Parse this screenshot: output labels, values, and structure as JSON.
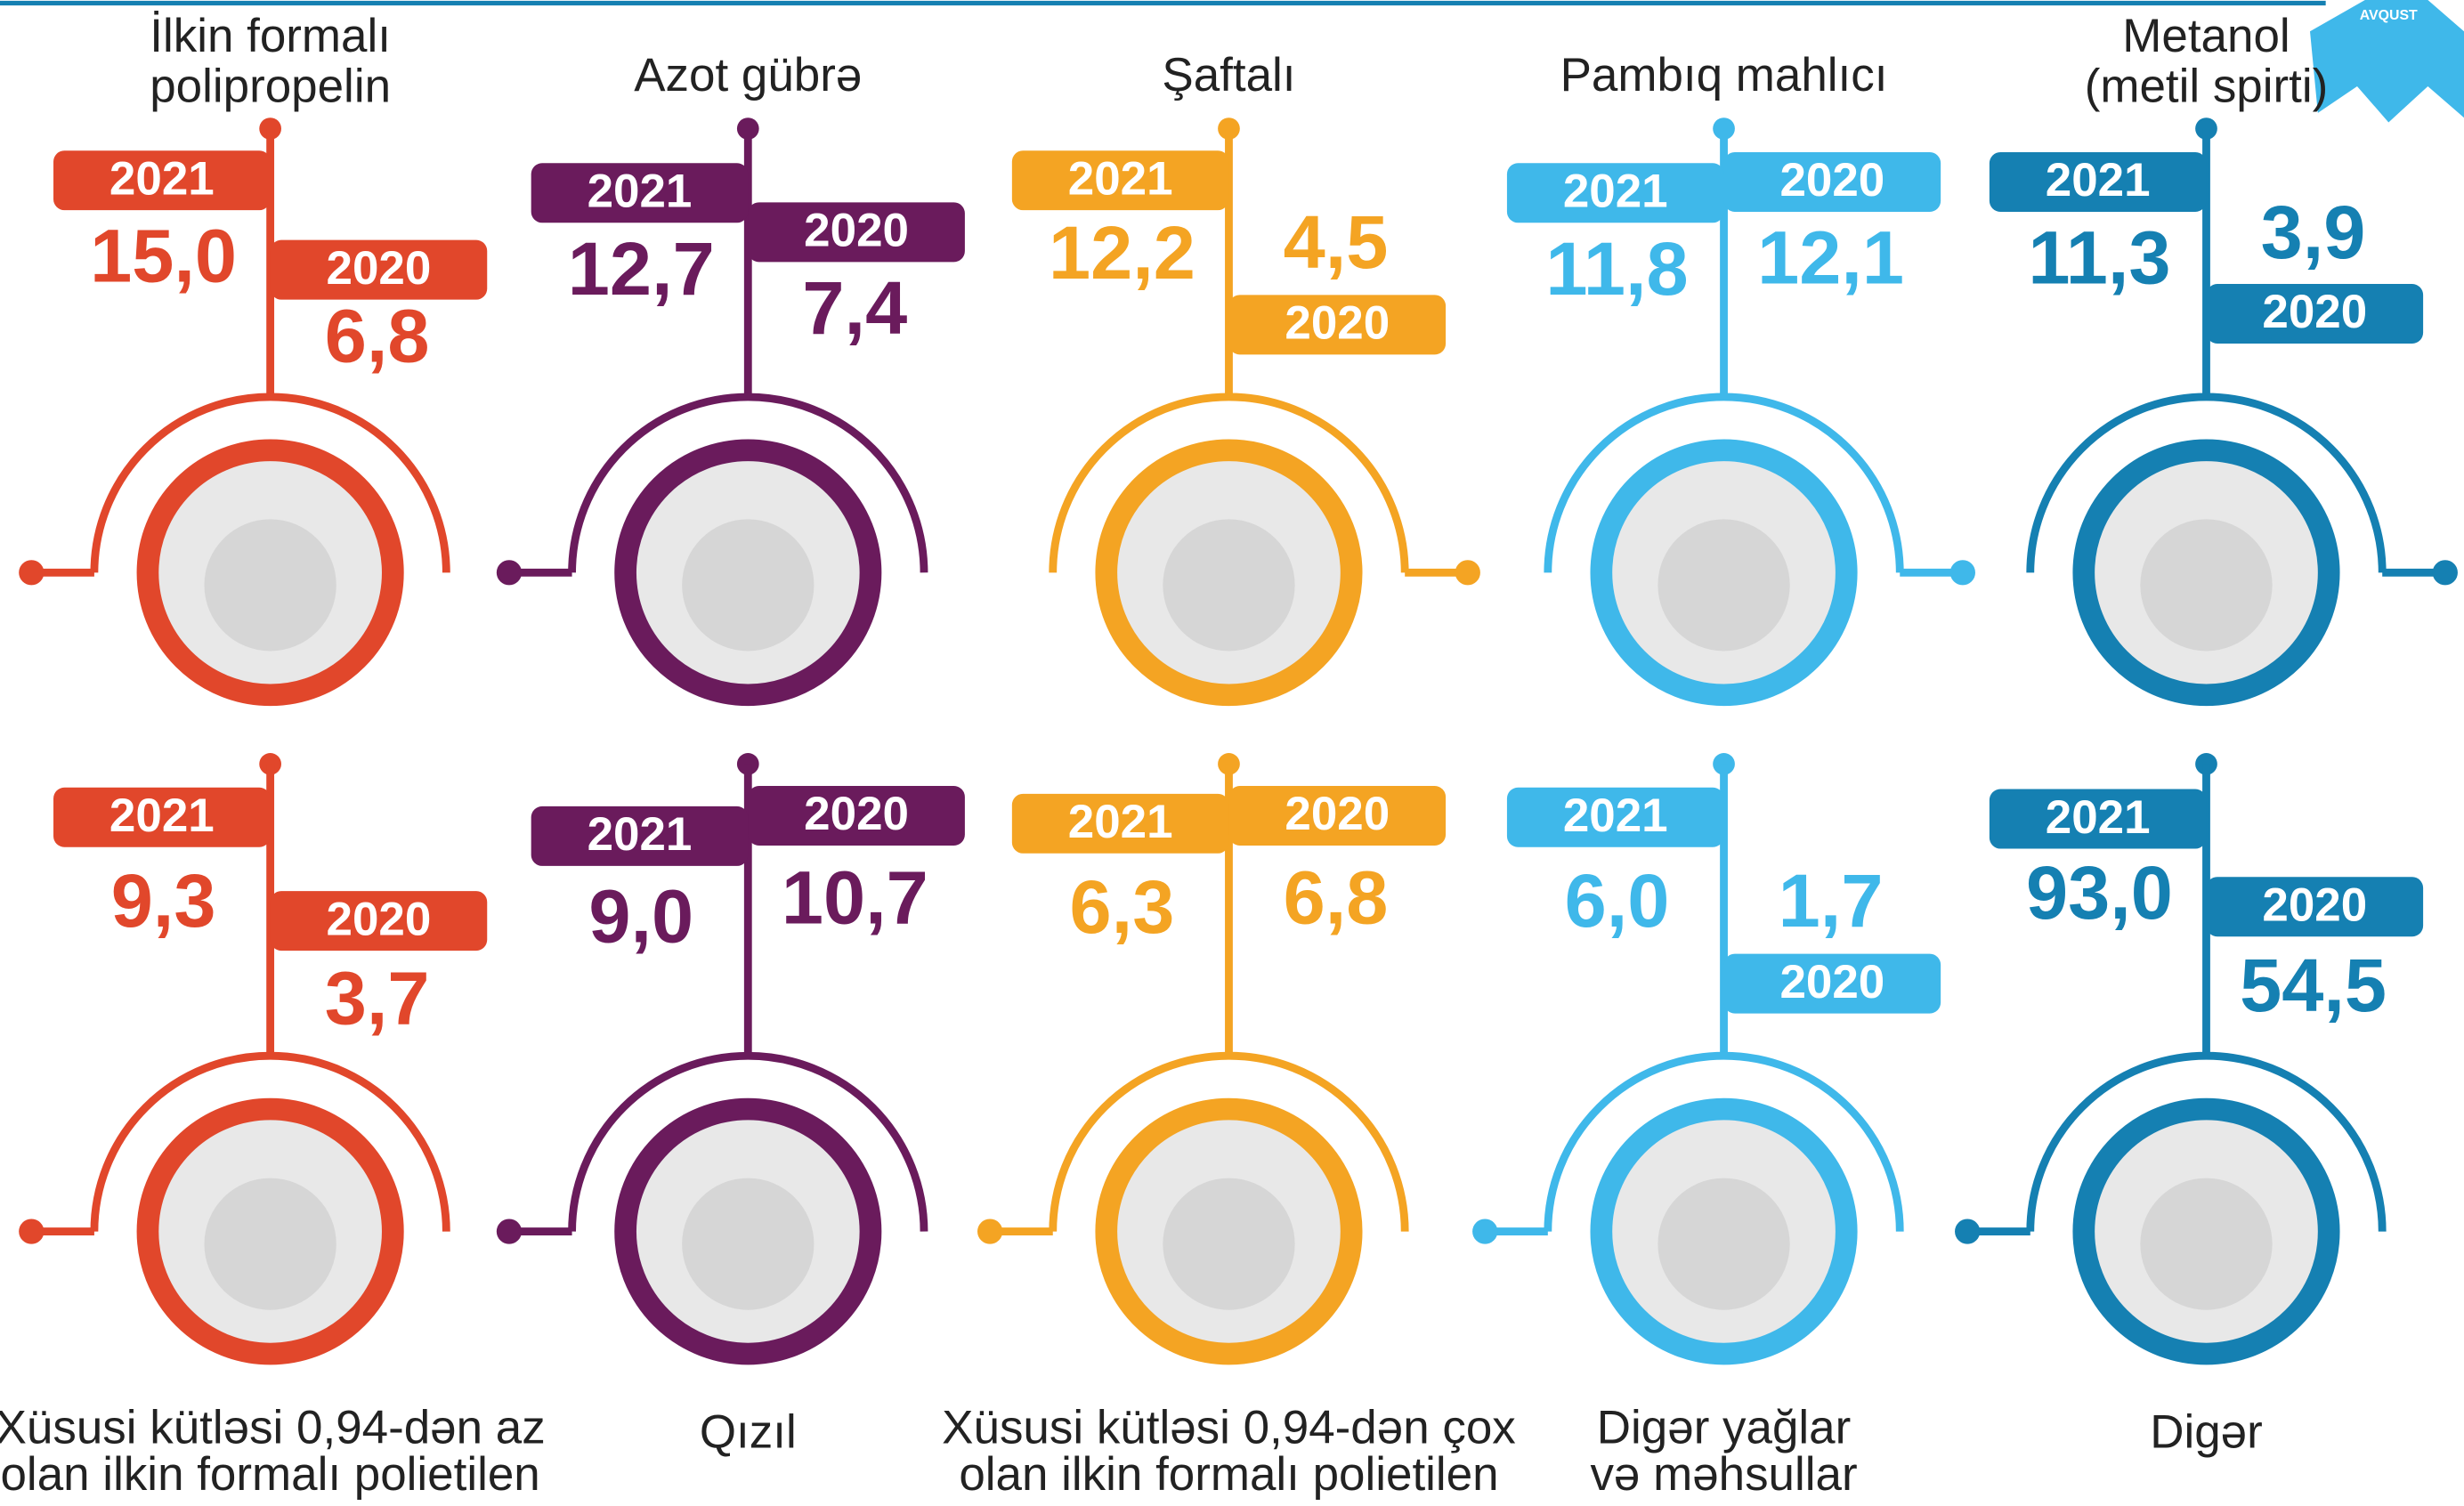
{
  "badge": "AVQUST",
  "year_labels": [
    "2021",
    "2020"
  ],
  "items": [
    {
      "label": [
        "İlkin formalı",
        "polipropelin"
      ],
      "color": "#e1472b",
      "values": [
        "15,0",
        "6,8"
      ]
    },
    {
      "label": [
        "Azot gübrə"
      ],
      "color": "#6a1b5c",
      "values": [
        "12,7",
        "7,4"
      ]
    },
    {
      "label": [
        "Şaftalı"
      ],
      "color": "#f4a423",
      "values": [
        "12,2",
        "4,5"
      ]
    },
    {
      "label": [
        "Pambıq mahlıcı"
      ],
      "color": "#3fb8ea",
      "values": [
        "11,8",
        "12,1"
      ]
    },
    {
      "label": [
        "Metanol",
        "(metil spirti)"
      ],
      "color": "#1580b2",
      "values": [
        "11,3",
        "3,9"
      ]
    },
    {
      "label": [
        "Xüsusi kütləsi 0,94-dən az",
        "olan ilkin formalı polietilen"
      ],
      "color": "#e1472b",
      "values": [
        "9,3",
        "3,7"
      ]
    },
    {
      "label": [
        "Qızıl"
      ],
      "color": "#6a1b5c",
      "values": [
        "9,0",
        "10,7"
      ]
    },
    {
      "label": [
        "Xüsusi kütləsi 0,94-dən çox",
        "olan ilkin formalı polietilen"
      ],
      "color": "#f4a423",
      "values": [
        "6,3",
        "6,8"
      ]
    },
    {
      "label": [
        "Digər yağlar",
        "və məhsullar"
      ],
      "color": "#3fb8ea",
      "values": [
        "6,0",
        "1,7"
      ]
    },
    {
      "label": [
        "Digər"
      ],
      "color": "#1580b2",
      "values": [
        "93,0",
        "54,5"
      ]
    }
  ]
}
